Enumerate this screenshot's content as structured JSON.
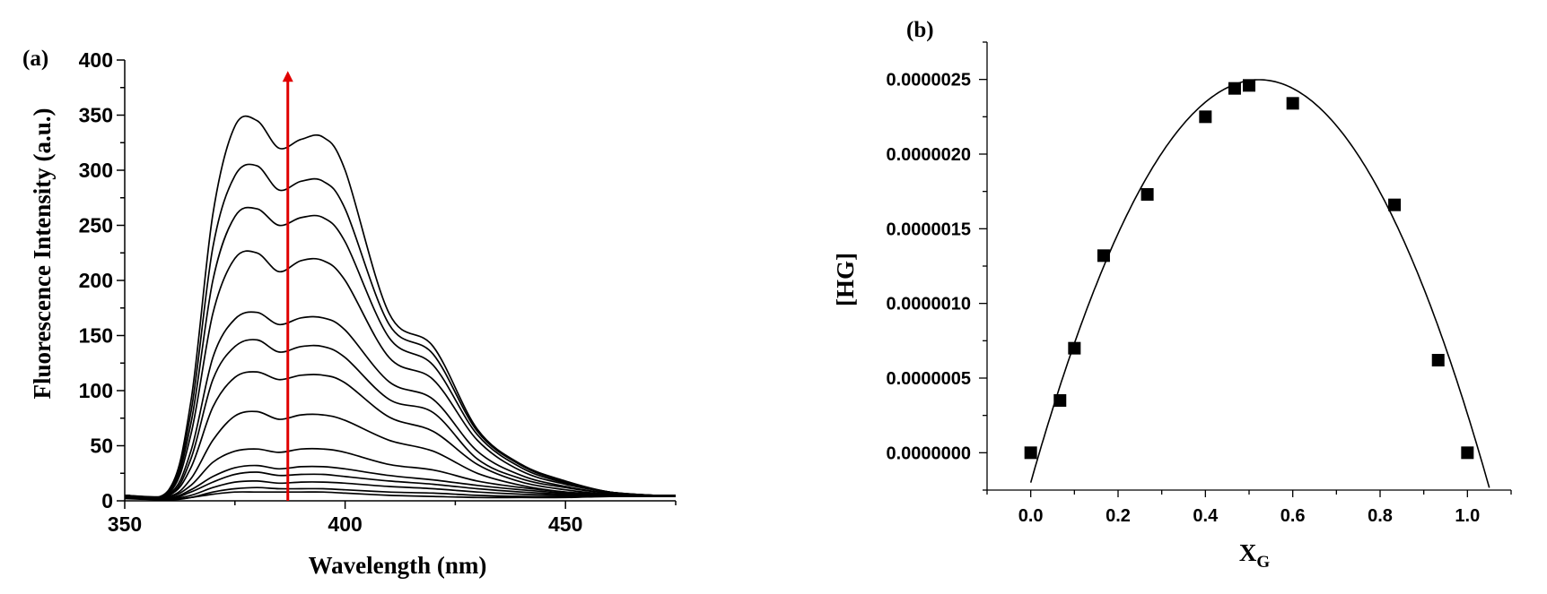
{
  "panels": {
    "a": {
      "label": "(a)"
    },
    "b": {
      "label": "(b)"
    }
  },
  "chart_data": [
    {
      "panel": "(a)",
      "type": "line",
      "xlabel": "Wavelength (nm)",
      "ylabel": "Fluorescence Intensity (a.u.)",
      "xlim": [
        350,
        475
      ],
      "ylim": [
        0,
        400
      ],
      "xticks": [
        350,
        400,
        450
      ],
      "yticks": [
        0,
        50,
        100,
        150,
        200,
        250,
        300,
        350,
        400
      ],
      "grid": false,
      "annotation": {
        "type": "arrow",
        "direction": "up",
        "x": 387,
        "from_y": 0,
        "to_y": 390,
        "color": "#e00000"
      },
      "series": [
        {
          "values": [
            [
              350,
              2
            ],
            [
              360,
              1
            ],
            [
              365,
              3
            ],
            [
              370,
              6
            ],
            [
              375,
              8
            ],
            [
              380,
              8
            ],
            [
              385,
              8
            ],
            [
              390,
              8
            ],
            [
              395,
              8
            ],
            [
              400,
              7
            ],
            [
              410,
              5
            ],
            [
              420,
              4
            ],
            [
              430,
              3
            ],
            [
              440,
              3
            ],
            [
              450,
              3
            ],
            [
              460,
              4
            ],
            [
              470,
              4
            ],
            [
              475,
              4
            ]
          ]
        },
        {
          "values": [
            [
              350,
              3
            ],
            [
              360,
              1
            ],
            [
              365,
              3
            ],
            [
              370,
              8
            ],
            [
              375,
              11
            ],
            [
              380,
              12
            ],
            [
              385,
              11
            ],
            [
              390,
              11
            ],
            [
              395,
              11
            ],
            [
              400,
              10
            ],
            [
              410,
              8
            ],
            [
              420,
              7
            ],
            [
              430,
              5
            ],
            [
              440,
              4
            ],
            [
              450,
              4
            ],
            [
              460,
              4
            ],
            [
              470,
              4
            ],
            [
              475,
              4
            ]
          ]
        },
        {
          "values": [
            [
              350,
              4
            ],
            [
              360,
              2
            ],
            [
              365,
              5
            ],
            [
              370,
              12
            ],
            [
              375,
              17
            ],
            [
              380,
              18
            ],
            [
              385,
              16
            ],
            [
              390,
              17
            ],
            [
              395,
              17
            ],
            [
              400,
              16
            ],
            [
              410,
              13
            ],
            [
              420,
              11
            ],
            [
              430,
              8
            ],
            [
              440,
              6
            ],
            [
              450,
              5
            ],
            [
              460,
              4
            ],
            [
              470,
              4
            ],
            [
              475,
              4
            ]
          ]
        },
        {
          "values": [
            [
              350,
              4
            ],
            [
              360,
              2
            ],
            [
              365,
              8
            ],
            [
              370,
              17
            ],
            [
              375,
              24
            ],
            [
              380,
              26
            ],
            [
              385,
              23
            ],
            [
              390,
              24
            ],
            [
              395,
              24
            ],
            [
              400,
              22
            ],
            [
              410,
              18
            ],
            [
              420,
              15
            ],
            [
              430,
              11
            ],
            [
              440,
              8
            ],
            [
              450,
              6
            ],
            [
              460,
              5
            ],
            [
              470,
              4
            ],
            [
              475,
              4
            ]
          ]
        },
        {
          "values": [
            [
              350,
              5
            ],
            [
              360,
              3
            ],
            [
              365,
              10
            ],
            [
              370,
              22
            ],
            [
              375,
              30
            ],
            [
              380,
              32
            ],
            [
              385,
              29
            ],
            [
              390,
              31
            ],
            [
              395,
              31
            ],
            [
              400,
              29
            ],
            [
              410,
              23
            ],
            [
              420,
              19
            ],
            [
              430,
              14
            ],
            [
              440,
              10
            ],
            [
              450,
              7
            ],
            [
              460,
              5
            ],
            [
              470,
              4
            ],
            [
              475,
              4
            ]
          ]
        },
        {
          "values": [
            [
              350,
              5
            ],
            [
              360,
              4
            ],
            [
              365,
              14
            ],
            [
              370,
              35
            ],
            [
              375,
              45
            ],
            [
              380,
              47
            ],
            [
              385,
              44
            ],
            [
              390,
              47
            ],
            [
              395,
              47
            ],
            [
              400,
              44
            ],
            [
              410,
              33
            ],
            [
              420,
              28
            ],
            [
              430,
              18
            ],
            [
              440,
              12
            ],
            [
              450,
              8
            ],
            [
              460,
              5
            ],
            [
              470,
              4
            ],
            [
              475,
              4
            ]
          ]
        },
        {
          "values": [
            [
              350,
              5
            ],
            [
              360,
              4
            ],
            [
              365,
              20
            ],
            [
              370,
              55
            ],
            [
              375,
              77
            ],
            [
              380,
              81
            ],
            [
              385,
              74
            ],
            [
              390,
              78
            ],
            [
              395,
              78
            ],
            [
              400,
              73
            ],
            [
              410,
              55
            ],
            [
              420,
              45
            ],
            [
              430,
              25
            ],
            [
              440,
              14
            ],
            [
              450,
              8
            ],
            [
              460,
              6
            ],
            [
              470,
              5
            ],
            [
              475,
              5
            ]
          ]
        },
        {
          "values": [
            [
              350,
              5
            ],
            [
              360,
              5
            ],
            [
              365,
              30
            ],
            [
              370,
              85
            ],
            [
              375,
              112
            ],
            [
              380,
              117
            ],
            [
              385,
              110
            ],
            [
              390,
              114
            ],
            [
              395,
              114
            ],
            [
              400,
              107
            ],
            [
              410,
              76
            ],
            [
              420,
              63
            ],
            [
              430,
              33
            ],
            [
              440,
              17
            ],
            [
              450,
              10
            ],
            [
              460,
              6
            ],
            [
              470,
              5
            ],
            [
              475,
              5
            ]
          ]
        },
        {
          "values": [
            [
              350,
              5
            ],
            [
              360,
              5
            ],
            [
              365,
              38
            ],
            [
              370,
              110
            ],
            [
              375,
              140
            ],
            [
              380,
              146
            ],
            [
              385,
              135
            ],
            [
              390,
              140
            ],
            [
              395,
              140
            ],
            [
              400,
              130
            ],
            [
              410,
              92
            ],
            [
              420,
              80
            ],
            [
              430,
              38
            ],
            [
              440,
              20
            ],
            [
              450,
              12
            ],
            [
              460,
              7
            ],
            [
              470,
              5
            ],
            [
              475,
              5
            ]
          ]
        },
        {
          "values": [
            [
              350,
              5
            ],
            [
              360,
              6
            ],
            [
              365,
              45
            ],
            [
              370,
              130
            ],
            [
              375,
              165
            ],
            [
              380,
              171
            ],
            [
              385,
              160
            ],
            [
              390,
              166
            ],
            [
              395,
              166
            ],
            [
              400,
              155
            ],
            [
              410,
              108
            ],
            [
              420,
              92
            ],
            [
              430,
              45
            ],
            [
              440,
              23
            ],
            [
              450,
              13
            ],
            [
              460,
              7
            ],
            [
              470,
              5
            ],
            [
              475,
              5
            ]
          ]
        },
        {
          "values": [
            [
              350,
              5
            ],
            [
              360,
              7
            ],
            [
              365,
              60
            ],
            [
              370,
              170
            ],
            [
              375,
              220
            ],
            [
              380,
              225
            ],
            [
              385,
              208
            ],
            [
              390,
              218
            ],
            [
              395,
              218
            ],
            [
              400,
              200
            ],
            [
              410,
              130
            ],
            [
              420,
              110
            ],
            [
              430,
              55
            ],
            [
              440,
              27
            ],
            [
              450,
              15
            ],
            [
              460,
              8
            ],
            [
              470,
              5
            ],
            [
              475,
              5
            ]
          ]
        },
        {
          "values": [
            [
              350,
              5
            ],
            [
              360,
              8
            ],
            [
              365,
              70
            ],
            [
              370,
              200
            ],
            [
              375,
              258
            ],
            [
              380,
              265
            ],
            [
              385,
              250
            ],
            [
              390,
              257
            ],
            [
              395,
              257
            ],
            [
              400,
              235
            ],
            [
              410,
              148
            ],
            [
              420,
              123
            ],
            [
              430,
              60
            ],
            [
              440,
              30
            ],
            [
              450,
              16
            ],
            [
              460,
              8
            ],
            [
              470,
              5
            ],
            [
              475,
              5
            ]
          ]
        },
        {
          "values": [
            [
              350,
              5
            ],
            [
              360,
              9
            ],
            [
              365,
              80
            ],
            [
              370,
              230
            ],
            [
              375,
              295
            ],
            [
              380,
              304
            ],
            [
              385,
              282
            ],
            [
              390,
              290
            ],
            [
              395,
              290
            ],
            [
              400,
              265
            ],
            [
              410,
              160
            ],
            [
              420,
              133
            ],
            [
              430,
              63
            ],
            [
              440,
              32
            ],
            [
              450,
              17
            ],
            [
              460,
              8
            ],
            [
              470,
              5
            ],
            [
              475,
              5
            ]
          ]
        },
        {
          "values": [
            [
              350,
              5
            ],
            [
              360,
              10
            ],
            [
              365,
              90
            ],
            [
              370,
              260
            ],
            [
              375,
              340
            ],
            [
              380,
              345
            ],
            [
              385,
              320
            ],
            [
              390,
              328
            ],
            [
              395,
              330
            ],
            [
              400,
              300
            ],
            [
              410,
              170
            ],
            [
              420,
              140
            ],
            [
              430,
              65
            ],
            [
              440,
              33
            ],
            [
              450,
              18
            ],
            [
              460,
              8
            ],
            [
              470,
              5
            ],
            [
              475,
              5
            ]
          ]
        }
      ]
    },
    {
      "panel": "(b)",
      "type": "scatter",
      "xlabel": "X",
      "xlabel_sub": "G",
      "ylabel": "[HG]",
      "xlim": [
        -0.1,
        1.1
      ],
      "ylim": [
        -2.5e-07,
        2.75e-06
      ],
      "xticks": [
        "0.0",
        "0.2",
        "0.4",
        "0.6",
        "0.8",
        "1.0"
      ],
      "yticks": [
        "0.0000000",
        "0.0000005",
        "0.0000010",
        "0.0000015",
        "0.0000020",
        "0.0000025"
      ],
      "grid": false,
      "points": [
        [
          0.0,
          0.0
        ],
        [
          0.067,
          3.5e-07
        ],
        [
          0.1,
          7e-07
        ],
        [
          0.167,
          1.32e-06
        ],
        [
          0.267,
          1.73e-06
        ],
        [
          0.4,
          2.25e-06
        ],
        [
          0.467,
          2.44e-06
        ],
        [
          0.5,
          2.46e-06
        ],
        [
          0.6,
          2.34e-06
        ],
        [
          0.833,
          1.66e-06
        ],
        [
          0.933,
          6.2e-07
        ],
        [
          1.0,
          0.0
        ]
      ],
      "fit": {
        "type": "polynomial",
        "coefficients": [
          -2e-07,
          1.031e-05,
          -9.85e-06
        ]
      }
    }
  ]
}
